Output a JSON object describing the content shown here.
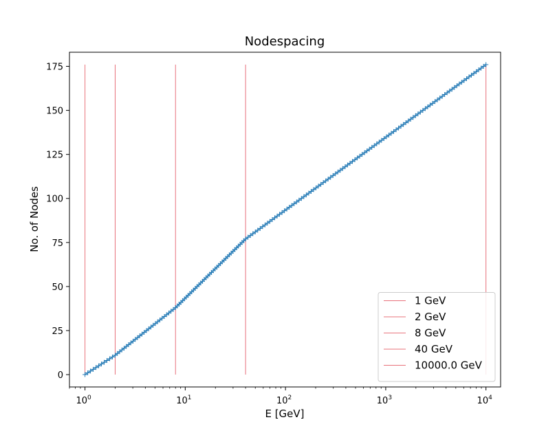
{
  "chart_data": {
    "type": "scatter",
    "title": "Nodespacing",
    "xlabel": "E [GeV]",
    "ylabel": "No. of Nodes",
    "xscale": "log",
    "xlim": [
      0.7,
      14000
    ],
    "ylim": [
      -7,
      183
    ],
    "x_ticks": [
      {
        "value": 1,
        "base": "10",
        "exp": "0"
      },
      {
        "value": 10,
        "base": "10",
        "exp": "1"
      },
      {
        "value": 100,
        "base": "10",
        "exp": "2"
      },
      {
        "value": 1000,
        "base": "10",
        "exp": "3"
      },
      {
        "value": 10000,
        "base": "10",
        "exp": "4"
      }
    ],
    "y_ticks": [
      0,
      25,
      50,
      75,
      100,
      125,
      150,
      175
    ],
    "grid": false,
    "legend_position": "bottom-right",
    "node_series": {
      "color": "#1f77b4",
      "marker": "plus",
      "points": [
        [
          1,
          0
        ],
        [
          2,
          11
        ],
        [
          8,
          38
        ],
        [
          40,
          77
        ],
        [
          10000,
          176
        ]
      ]
    },
    "vlines": [
      {
        "x": 1,
        "label": "1 GeV",
        "color": "#e8707a"
      },
      {
        "x": 2,
        "label": "2 GeV",
        "color": "#e8707a"
      },
      {
        "x": 8,
        "label": "8 GeV",
        "color": "#e8707a"
      },
      {
        "x": 40,
        "label": "40 GeV",
        "color": "#e8707a"
      },
      {
        "x": 10000,
        "label": "10000.0 GeV",
        "color": "#e8707a"
      }
    ],
    "vline_ymax": 176
  }
}
